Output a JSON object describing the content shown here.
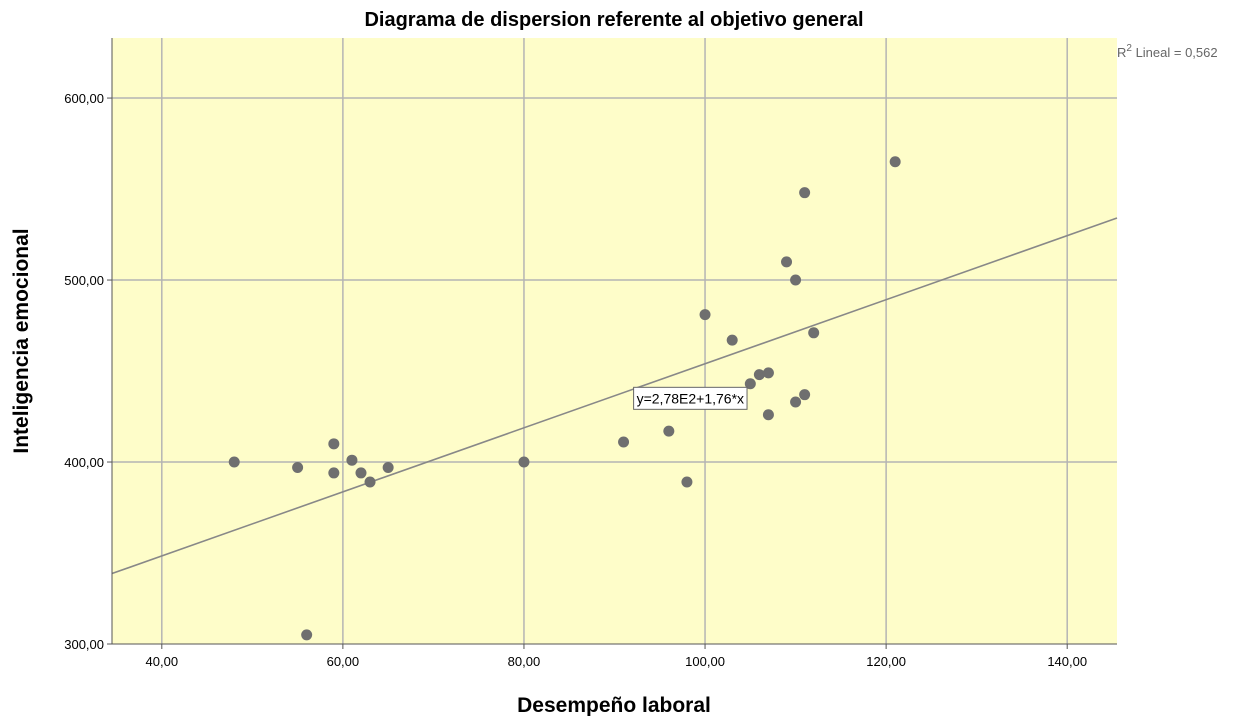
{
  "chart_data": {
    "type": "scatter",
    "title": "Diagrama de dispersion referente al objetivo general",
    "xlabel": "Desempeño laboral",
    "ylabel": "Inteligencia emocional",
    "xlim": [
      34.5,
      145.5
    ],
    "ylim": [
      300,
      633
    ],
    "x_ticks": [
      40,
      60,
      80,
      100,
      120,
      140
    ],
    "y_ticks": [
      300,
      400,
      500,
      600
    ],
    "x_tick_labels": [
      "40,00",
      "60,00",
      "80,00",
      "100,00",
      "120,00",
      "140,00"
    ],
    "y_tick_labels": [
      "300,00",
      "400,00",
      "500,00",
      "600,00"
    ],
    "grid": true,
    "background_color": "#fefdc9",
    "point_color": "#6f6f6f",
    "line_color": "#888888",
    "points": [
      {
        "x": 48,
        "y": 400
      },
      {
        "x": 55,
        "y": 397
      },
      {
        "x": 56,
        "y": 305
      },
      {
        "x": 59,
        "y": 410
      },
      {
        "x": 59,
        "y": 394
      },
      {
        "x": 61,
        "y": 401
      },
      {
        "x": 62,
        "y": 394
      },
      {
        "x": 63,
        "y": 389
      },
      {
        "x": 65,
        "y": 397
      },
      {
        "x": 80,
        "y": 400
      },
      {
        "x": 91,
        "y": 411
      },
      {
        "x": 96,
        "y": 417
      },
      {
        "x": 98,
        "y": 389
      },
      {
        "x": 100,
        "y": 481
      },
      {
        "x": 103,
        "y": 467
      },
      {
        "x": 105,
        "y": 443
      },
      {
        "x": 106,
        "y": 448
      },
      {
        "x": 107,
        "y": 449
      },
      {
        "x": 107,
        "y": 426
      },
      {
        "x": 109,
        "y": 510
      },
      {
        "x": 110,
        "y": 500
      },
      {
        "x": 110,
        "y": 433
      },
      {
        "x": 111,
        "y": 437
      },
      {
        "x": 111,
        "y": 548
      },
      {
        "x": 112,
        "y": 471
      },
      {
        "x": 121,
        "y": 565
      }
    ],
    "fit_line": {
      "intercept": 278,
      "slope": 1.76,
      "equation_label": "y=2,78E2+1,76*x",
      "equation_anchor": {
        "x": 92,
        "y": 435
      }
    },
    "annotations": {
      "r2_prefix": "R",
      "r2_sup": "2",
      "r2_text": " Lineal = 0,562"
    }
  }
}
